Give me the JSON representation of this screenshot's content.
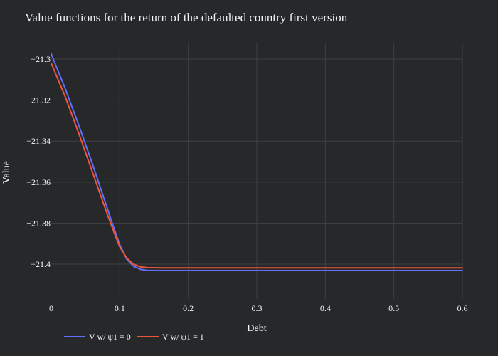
{
  "chart_data": {
    "type": "line",
    "title": "Value functions for the return of the defaulted country first version",
    "xlabel": "Debt",
    "ylabel": "Value",
    "xlim": [
      0,
      0.6
    ],
    "ylim": [
      -21.417,
      -21.292
    ],
    "xticks": [
      0,
      0.1,
      0.2,
      0.3,
      0.4,
      0.5,
      0.6
    ],
    "xtick_labels": [
      "0",
      "0.1",
      "0.2",
      "0.3",
      "0.4",
      "0.5",
      "0.6"
    ],
    "yticks": [
      -21.3,
      -21.32,
      -21.34,
      -21.36,
      -21.38,
      -21.4
    ],
    "ytick_labels": [
      "−21.3",
      "−21.32",
      "−21.34",
      "−21.36",
      "−21.38",
      "−21.4"
    ],
    "grid": true,
    "legend_position": "bottom-left",
    "series": [
      {
        "name": "V w/ ψ1 = 0",
        "color": "#636efa",
        "x": [
          0,
          0.02,
          0.04,
          0.06,
          0.08,
          0.09,
          0.1,
          0.11,
          0.12,
          0.13,
          0.14,
          0.16,
          0.2,
          0.3,
          0.4,
          0.5,
          0.6
        ],
        "y": [
          -21.2975,
          -21.314,
          -21.332,
          -21.351,
          -21.371,
          -21.381,
          -21.3905,
          -21.3975,
          -21.401,
          -21.4025,
          -21.403,
          -21.4031,
          -21.4031,
          -21.4031,
          -21.4031,
          -21.4031,
          -21.4031
        ]
      },
      {
        "name": "V w/ ψ1 = 1",
        "color": "#ef553b",
        "x": [
          0,
          0.02,
          0.04,
          0.06,
          0.08,
          0.09,
          0.1,
          0.11,
          0.12,
          0.13,
          0.14,
          0.16,
          0.2,
          0.3,
          0.4,
          0.5,
          0.6
        ],
        "y": [
          -21.302,
          -21.318,
          -21.336,
          -21.355,
          -21.374,
          -21.383,
          -21.3915,
          -21.397,
          -21.4,
          -21.4013,
          -21.4017,
          -21.4018,
          -21.4018,
          -21.4018,
          -21.4018,
          -21.4018,
          -21.4018
        ]
      }
    ]
  }
}
